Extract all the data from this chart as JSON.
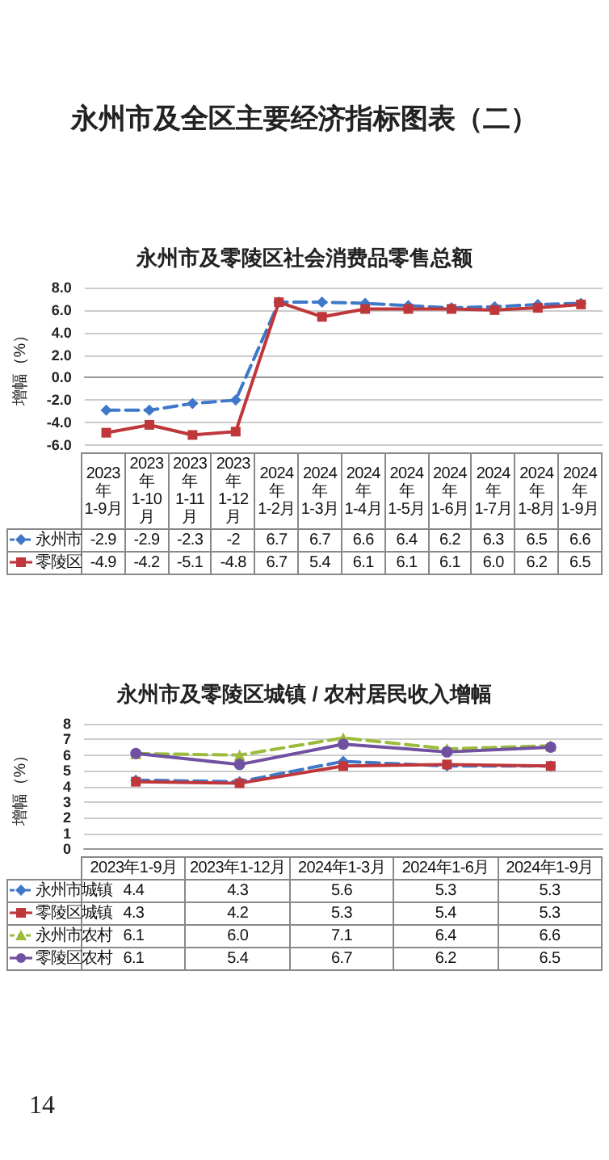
{
  "chart_data": [
    {
      "type": "line",
      "title": "永州市及零陵区社会消费品零售总额",
      "ylabel": "增幅（%）",
      "annotations": [
        "永州市及全区主要经济指标图表（二）"
      ],
      "categories": [
        "2023年\n1-9月",
        "2023年\n1-10月",
        "2023年\n1-11月",
        "2023年\n1-12月",
        "2024年\n1-2月",
        "2024年\n1-3月",
        "2024年\n1-4月",
        "2024年\n1-5月",
        "2024年\n1-6月",
        "2024年\n1-7月",
        "2024年\n1-8月",
        "2024年\n1-9月"
      ],
      "series": [
        {
          "name": "永州市",
          "color": "#3f78c8",
          "marker": "diamond",
          "line_style": "dashed",
          "values": [
            -2.9,
            -2.9,
            -2.3,
            -2,
            6.7,
            6.7,
            6.6,
            6.4,
            6.2,
            6.3,
            6.5,
            6.6
          ],
          "value_labels": [
            "-2.9",
            "-2.9",
            "-2.3",
            "-2",
            "6.7",
            "6.7",
            "6.6",
            "6.4",
            "6.2",
            "6.3",
            "6.5",
            "6.6"
          ]
        },
        {
          "name": "零陵区",
          "color": "#c0373b",
          "marker": "square",
          "line_style": "solid",
          "values": [
            -4.9,
            -4.2,
            -5.1,
            -4.8,
            6.7,
            5.4,
            6.1,
            6.1,
            6.1,
            6.0,
            6.2,
            6.5
          ],
          "value_labels": [
            "-4.9",
            "-4.2",
            "-5.1",
            "-4.8",
            "6.7",
            "5.4",
            "6.1",
            "6.1",
            "6.1",
            "6.0",
            "6.2",
            "6.5"
          ]
        }
      ],
      "ylim": [
        -6,
        8
      ],
      "yticks": [
        {
          "value": -6,
          "label": "-6.0"
        },
        {
          "value": -4,
          "label": "-4.0"
        },
        {
          "value": -2,
          "label": "-2.0"
        },
        {
          "value": 0,
          "label": "0.0"
        },
        {
          "value": 2,
          "label": "2.0"
        },
        {
          "value": 4,
          "label": "4.0"
        },
        {
          "value": 6,
          "label": "6.0"
        },
        {
          "value": 8,
          "label": "8.0"
        }
      ],
      "grid": "y",
      "legend": "left"
    },
    {
      "type": "line",
      "title": "永州市及零陵区城镇 / 农村居民收入增幅",
      "ylabel": "增幅（%）",
      "annotations": [
        "14"
      ],
      "categories": [
        "2023年1-9月",
        "2023年1-12月",
        "2024年1-3月",
        "2024年1-6月",
        "2024年1-9月"
      ],
      "series": [
        {
          "name": "永州市城镇",
          "color": "#3f78c8",
          "marker": "diamond",
          "line_style": "dashed",
          "values": [
            4.4,
            4.3,
            5.6,
            5.3,
            5.3
          ],
          "value_labels": [
            "4.4",
            "4.3",
            "5.6",
            "5.3",
            "5.3"
          ]
        },
        {
          "name": "零陵区城镇",
          "color": "#c0373b",
          "marker": "square",
          "line_style": "solid",
          "values": [
            4.3,
            4.2,
            5.3,
            5.4,
            5.3
          ],
          "value_labels": [
            "4.3",
            "4.2",
            "5.3",
            "5.4",
            "5.3"
          ]
        },
        {
          "name": "永州市农村",
          "color": "#9bbb3b",
          "marker": "triangle",
          "line_style": "dashed",
          "values": [
            6.1,
            6.0,
            7.1,
            6.4,
            6.6
          ],
          "value_labels": [
            "6.1",
            "6.0",
            "7.1",
            "6.4",
            "6.6"
          ]
        },
        {
          "name": "零陵区农村",
          "color": "#7050a0",
          "marker": "circle",
          "line_style": "solid",
          "values": [
            6.1,
            5.4,
            6.7,
            6.2,
            6.5
          ],
          "value_labels": [
            "6.1",
            "5.4",
            "6.7",
            "6.2",
            "6.5"
          ]
        }
      ],
      "ylim": [
        0,
        8
      ],
      "yticks": [
        0,
        1,
        2,
        3,
        4,
        5,
        6,
        7,
        8
      ],
      "grid": "y",
      "legend": "left"
    }
  ]
}
